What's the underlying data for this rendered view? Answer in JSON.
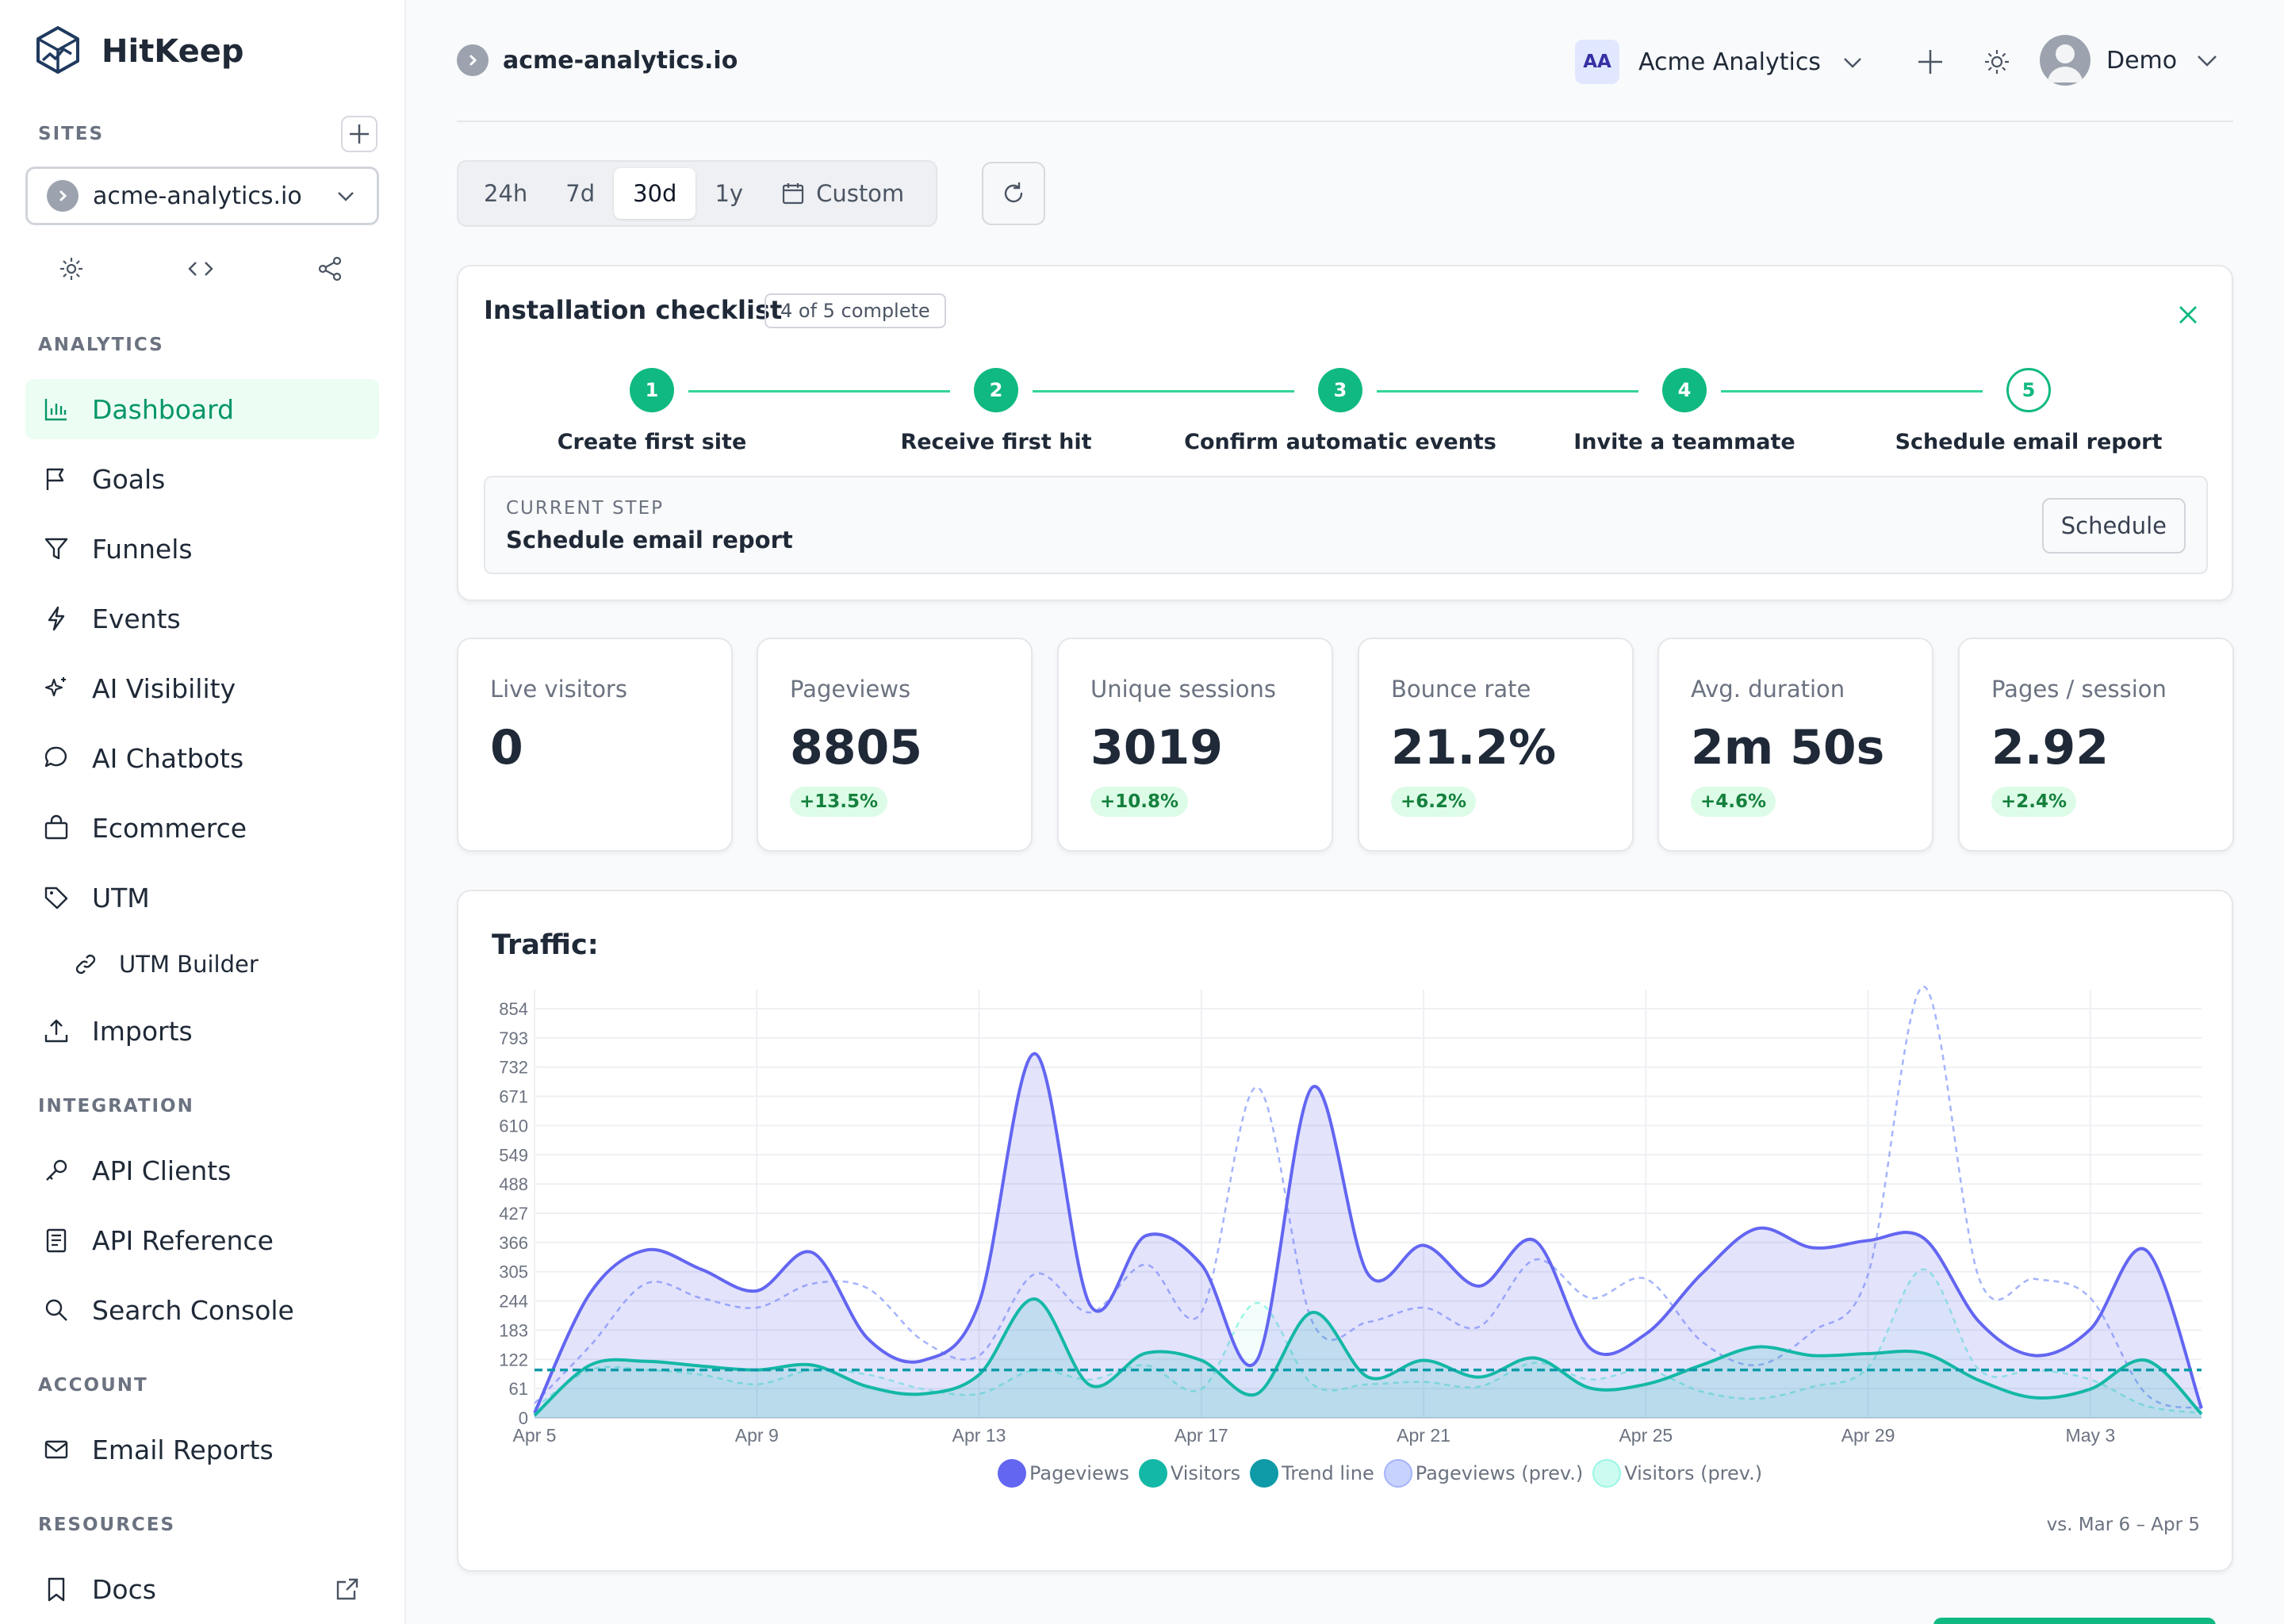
{
  "app": {
    "name": "HitKeep"
  },
  "sidebar": {
    "sites_label": "SITES",
    "site_select": {
      "value": "acme-analytics.io"
    },
    "sections": {
      "analytics": "ANALYTICS",
      "integration": "INTEGRATION",
      "account": "ACCOUNT",
      "resources": "RESOURCES"
    },
    "items": {
      "dashboard": "Dashboard",
      "goals": "Goals",
      "funnels": "Funnels",
      "events": "Events",
      "ai_visibility": "AI Visibility",
      "ai_chatbots": "AI Chatbots",
      "ecommerce": "Ecommerce",
      "utm": "UTM",
      "utm_builder": "UTM Builder",
      "imports": "Imports",
      "api_clients": "API Clients",
      "api_reference": "API Reference",
      "search_console": "Search Console",
      "email_reports": "Email Reports",
      "docs": "Docs"
    }
  },
  "header": {
    "breadcrumb": "acme-analytics.io",
    "org": {
      "initials": "AA",
      "name": "Acme Analytics"
    },
    "user": {
      "name": "Demo"
    }
  },
  "range": {
    "options": [
      "24h",
      "7d",
      "30d",
      "1y"
    ],
    "selected": "30d",
    "custom_label": "Custom"
  },
  "checklist": {
    "title": "Installation checklist",
    "badge": "4 of 5 complete",
    "steps": [
      {
        "n": "1",
        "label": "Create first site",
        "done": true
      },
      {
        "n": "2",
        "label": "Receive first hit",
        "done": true
      },
      {
        "n": "3",
        "label": "Confirm automatic events",
        "done": true
      },
      {
        "n": "4",
        "label": "Invite a teammate",
        "done": true
      },
      {
        "n": "5",
        "label": "Schedule email report",
        "done": false
      }
    ],
    "current_step_key": "CURRENT STEP",
    "current_step_value": "Schedule email report",
    "current_step_button": "Schedule"
  },
  "stats": [
    {
      "label": "Live visitors",
      "value": "0",
      "change": ""
    },
    {
      "label": "Pageviews",
      "value": "8805",
      "change": "+13.5%"
    },
    {
      "label": "Unique sessions",
      "value": "3019",
      "change": "+10.8%"
    },
    {
      "label": "Bounce rate",
      "value": "21.2%",
      "change": "+6.2%"
    },
    {
      "label": "Avg. duration",
      "value": "2m 50s",
      "change": "+4.6%"
    },
    {
      "label": "Pages / session",
      "value": "2.92",
      "change": "+2.4%"
    }
  ],
  "traffic": {
    "title": "Traffic:",
    "compare": "vs. Mar 6 – Apr 5"
  },
  "colors": {
    "accent": "#10b981",
    "pageviews": "#6366f1",
    "visitors": "#14b8a6",
    "trend": "#0e9aa7",
    "pageviews_prev": "#a5b4fc",
    "visitors_prev": "#99f6e4"
  },
  "chart_data": {
    "type": "area",
    "title": "Traffic:",
    "y_ticks": [
      0,
      61,
      122,
      183,
      244,
      305,
      366,
      427,
      488,
      549,
      610,
      671,
      732,
      793,
      854
    ],
    "ylim": [
      0,
      854
    ],
    "x_tick_labels": [
      "Apr 5",
      "Apr 9",
      "Apr 13",
      "Apr 17",
      "Apr 21",
      "Apr 25",
      "Apr 29",
      "May 3"
    ],
    "x": [
      "Apr 5",
      "Apr 6",
      "Apr 7",
      "Apr 8",
      "Apr 9",
      "Apr 10",
      "Apr 11",
      "Apr 12",
      "Apr 13",
      "Apr 14",
      "Apr 15",
      "Apr 16",
      "Apr 17",
      "Apr 18",
      "Apr 19",
      "Apr 20",
      "Apr 21",
      "Apr 22",
      "Apr 23",
      "Apr 24",
      "Apr 25",
      "Apr 26",
      "Apr 27",
      "Apr 28",
      "Apr 29",
      "Apr 30",
      "May 1",
      "May 2",
      "May 3",
      "May 4",
      "May 5"
    ],
    "legend_position": "bottom",
    "grid": true,
    "series": [
      {
        "name": "Pageviews",
        "values": [
          10,
          260,
          350,
          310,
          265,
          345,
          165,
          120,
          240,
          760,
          235,
          380,
          320,
          120,
          690,
          300,
          360,
          275,
          370,
          145,
          175,
          300,
          395,
          355,
          370,
          375,
          200,
          130,
          185,
          350,
          20
        ]
      },
      {
        "name": "Visitors",
        "values": [
          5,
          110,
          118,
          108,
          100,
          110,
          65,
          50,
          90,
          248,
          68,
          135,
          120,
          50,
          220,
          85,
          120,
          85,
          125,
          62,
          70,
          110,
          148,
          130,
          134,
          135,
          78,
          42,
          60,
          120,
          8
        ]
      },
      {
        "name": "Trend line",
        "values": [
          100,
          100,
          100,
          100,
          100,
          100,
          100,
          100,
          100,
          100,
          100,
          100,
          100,
          100,
          100,
          100,
          100,
          100,
          100,
          100,
          100,
          100,
          100,
          100,
          100,
          100,
          100,
          100,
          100,
          100,
          100
        ]
      },
      {
        "name": "Pageviews (prev.)",
        "values": [
          30,
          150,
          280,
          250,
          230,
          280,
          270,
          160,
          130,
          300,
          220,
          320,
          220,
          690,
          200,
          200,
          230,
          190,
          330,
          250,
          290,
          160,
          110,
          180,
          300,
          900,
          290,
          290,
          250,
          50,
          20
        ]
      },
      {
        "name": "Visitors (prev.)",
        "values": [
          20,
          100,
          100,
          90,
          70,
          100,
          90,
          60,
          50,
          100,
          80,
          110,
          60,
          240,
          70,
          70,
          75,
          65,
          115,
          80,
          100,
          55,
          40,
          65,
          105,
          310,
          100,
          100,
          80,
          25,
          10
        ]
      }
    ]
  }
}
